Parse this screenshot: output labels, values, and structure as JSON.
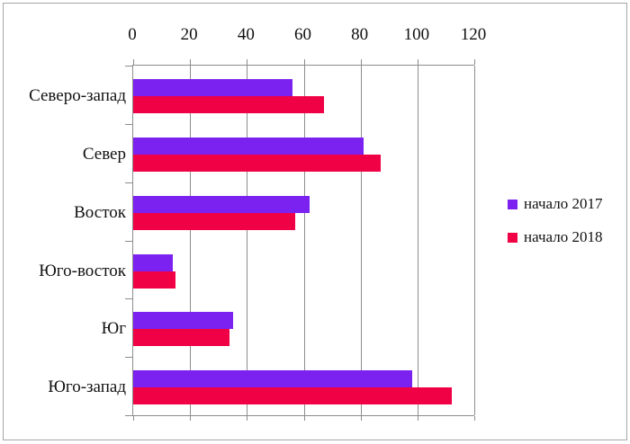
{
  "chart_data": {
    "type": "bar",
    "orientation": "horizontal",
    "title": "",
    "xlabel": "",
    "ylabel": "",
    "categories": [
      "Северо-запад",
      "Север",
      "Восток",
      "Юго-восток",
      "Юг",
      "Юго-запад"
    ],
    "series": [
      {
        "name": "начало 2017",
        "color": "#7B22F0",
        "values": [
          56,
          81,
          62,
          14,
          35,
          98
        ]
      },
      {
        "name": "начало 2018",
        "color": "#F00045",
        "values": [
          67,
          87,
          57,
          15,
          34,
          112
        ]
      }
    ],
    "xlim": [
      0,
      120
    ],
    "xticks": [
      0,
      20,
      40,
      60,
      80,
      100,
      120
    ],
    "grid": true,
    "legend_position": "right"
  },
  "styles": {
    "grid_color": "#8c8c8c",
    "axis_color": "#8c8c8c",
    "frame_border_color": "#a6a6a6",
    "text_color": "#111111",
    "background": "#ffffff"
  }
}
